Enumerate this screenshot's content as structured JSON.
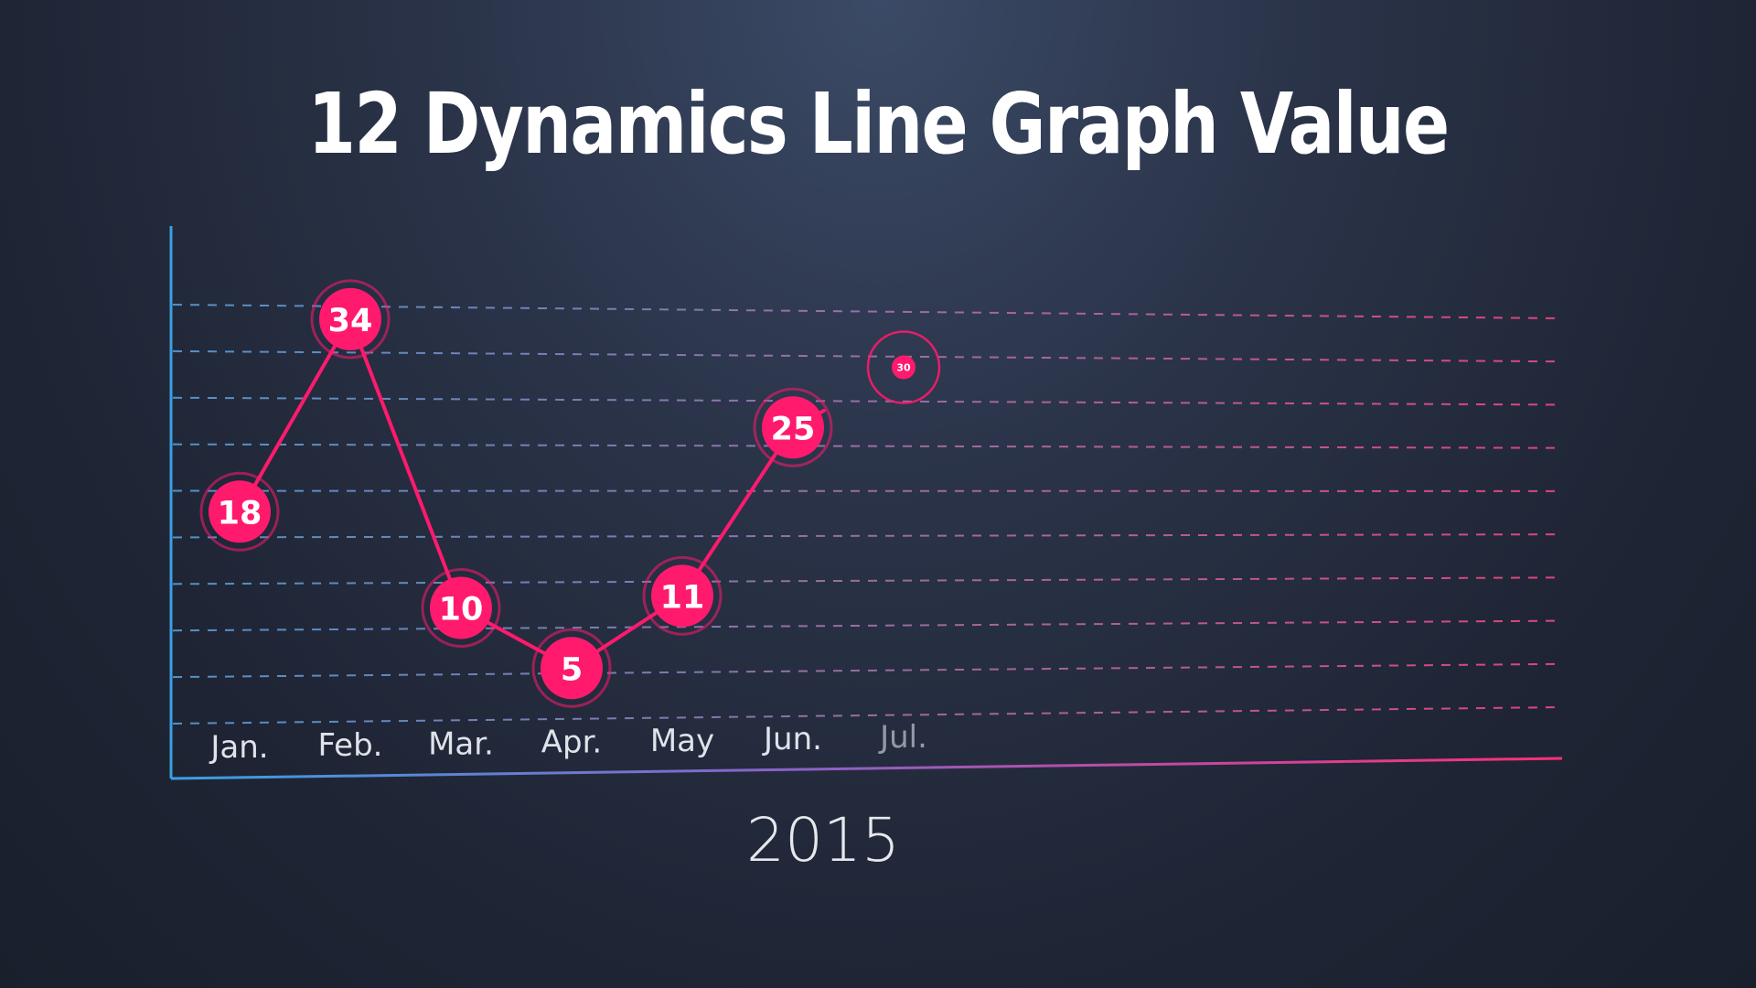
{
  "title": "12 Dynamics Line Graph Value",
  "xlabel": "2015",
  "colors": {
    "accent": "#ff1a6e",
    "axis_left": "#3aa0e0",
    "axis_right": "#ff2f78",
    "grid_left": "#5aa6e0",
    "grid_right": "#ff4a88",
    "tick_label": "#dfe3ea"
  },
  "chart_data": {
    "type": "line",
    "title": "12 Dynamics Line Graph Value",
    "xlabel": "2015",
    "ylabel": "",
    "categories": [
      "Jan.",
      "Feb.",
      "Mar.",
      "Apr.",
      "May",
      "Jun.",
      "Jul."
    ],
    "values": [
      18,
      34,
      10,
      5,
      11,
      25,
      30
    ],
    "data_labels": [
      "18",
      "34",
      "10",
      "5",
      "11",
      "25",
      "30"
    ],
    "grid": true,
    "grid_lines": 10,
    "legend": "none",
    "animating_point": "Jul."
  }
}
